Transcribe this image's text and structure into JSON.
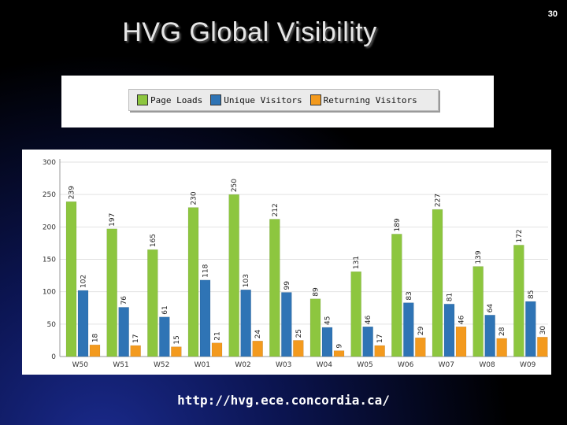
{
  "slide": {
    "number": "30",
    "title": "HVG Global Visibility",
    "url": "http://hvg.ece.concordia.ca/"
  },
  "chart_data": {
    "type": "bar",
    "categories": [
      "W50",
      "W51",
      "W52",
      "W01",
      "W02",
      "W03",
      "W04",
      "W05",
      "W06",
      "W07",
      "W08",
      "W09"
    ],
    "series": [
      {
        "name": "Page Loads",
        "color": "#8dc63f",
        "values": [
          239,
          197,
          165,
          230,
          250,
          212,
          89,
          131,
          189,
          227,
          139,
          172
        ]
      },
      {
        "name": "Unique Visitors",
        "color": "#2f74b5",
        "values": [
          102,
          76,
          61,
          118,
          103,
          99,
          45,
          46,
          83,
          81,
          64,
          85
        ]
      },
      {
        "name": "Returning Visitors",
        "color": "#f39a1e",
        "values": [
          18,
          17,
          15,
          21,
          24,
          25,
          9,
          17,
          29,
          46,
          28,
          30
        ]
      }
    ],
    "yticks": [
      "0",
      "50",
      "100",
      "150",
      "200",
      "250",
      "300"
    ],
    "ylim": [
      0,
      300
    ],
    "legend_position": "top",
    "grid": true
  }
}
